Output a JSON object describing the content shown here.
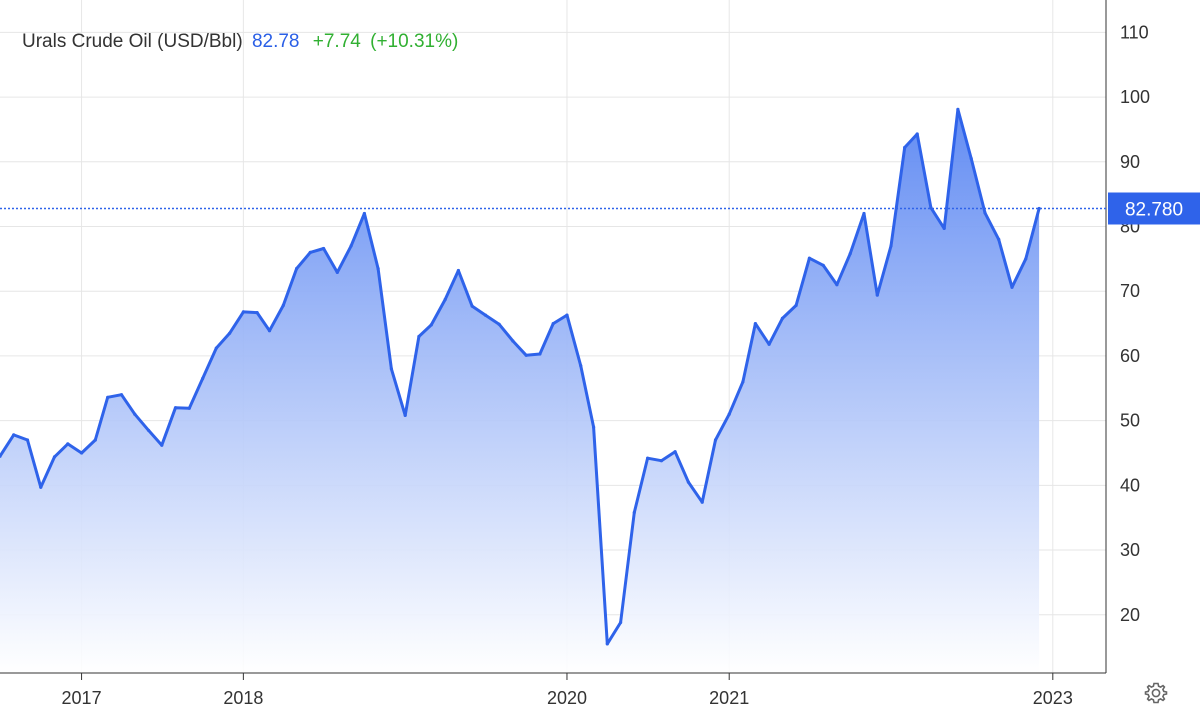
{
  "header": {
    "title": "Urals Crude Oil (USD/Bbl)",
    "price": "82.78",
    "change": "+7.74",
    "change_pct": "(+10.31%)"
  },
  "settings_icon": "gear-icon",
  "colors": {
    "line": "#2f63ea",
    "fill_top": "#5a86f2",
    "fill_bottom": "#ffffff",
    "price_text": "#2a5fe6",
    "change_text": "#31b032",
    "grid": "#e6e6e6",
    "price_tag_bg": "#2f63ea"
  },
  "chart_data": {
    "type": "area",
    "title": "",
    "xlabel": "",
    "ylabel": "",
    "ylim": [
      11,
      115
    ],
    "xlim": [
      "2016-07-01",
      "2023-05-01"
    ],
    "y_ticks": [
      20,
      30,
      40,
      50,
      60,
      70,
      80,
      90,
      100,
      110
    ],
    "y_ticks_labels": [
      "20",
      "30",
      "40",
      "50",
      "60",
      "70",
      "80",
      "90",
      "100",
      "110"
    ],
    "x_ticks": [
      {
        "label": "2017",
        "date": "2017-01-01"
      },
      {
        "label": "2018",
        "date": "2018-01-01"
      },
      {
        "label": "2020",
        "date": "2020-01-01"
      },
      {
        "label": "2021",
        "date": "2021-01-01"
      },
      {
        "label": "2023",
        "date": "2023-01-01"
      }
    ],
    "grid": true,
    "current_value": 82.78,
    "current_value_label": "82.780",
    "series": [
      {
        "name": "",
        "points": [
          [
            "2016-07-01",
            44.5
          ],
          [
            "2016-08-01",
            47.8
          ],
          [
            "2016-09-01",
            47.0
          ],
          [
            "2016-10-01",
            39.7
          ],
          [
            "2016-11-01",
            44.4
          ],
          [
            "2016-12-01",
            46.4
          ],
          [
            "2017-01-01",
            45.0
          ],
          [
            "2017-02-01",
            47.0
          ],
          [
            "2017-03-01",
            53.6
          ],
          [
            "2017-04-01",
            54.0
          ],
          [
            "2017-05-01",
            51.0
          ],
          [
            "2017-06-01",
            48.5
          ],
          [
            "2017-07-01",
            46.2
          ],
          [
            "2017-08-01",
            52.0
          ],
          [
            "2017-09-01",
            51.9
          ],
          [
            "2017-10-01",
            56.5
          ],
          [
            "2017-11-01",
            61.2
          ],
          [
            "2017-12-01",
            63.5
          ],
          [
            "2018-01-01",
            66.8
          ],
          [
            "2018-02-01",
            66.7
          ],
          [
            "2018-03-01",
            63.9
          ],
          [
            "2018-04-01",
            67.8
          ],
          [
            "2018-05-01",
            73.5
          ],
          [
            "2018-06-01",
            76.0
          ],
          [
            "2018-07-01",
            76.6
          ],
          [
            "2018-08-01",
            72.9
          ],
          [
            "2018-09-01",
            77.0
          ],
          [
            "2018-10-01",
            82.0
          ],
          [
            "2018-11-01",
            73.5
          ],
          [
            "2018-12-01",
            58.0
          ],
          [
            "2019-01-01",
            50.8
          ],
          [
            "2019-02-01",
            63.0
          ],
          [
            "2019-03-01",
            64.8
          ],
          [
            "2019-04-01",
            68.7
          ],
          [
            "2019-05-01",
            73.2
          ],
          [
            "2019-06-01",
            67.7
          ],
          [
            "2019-07-01",
            66.3
          ],
          [
            "2019-08-01",
            64.9
          ],
          [
            "2019-09-01",
            62.3
          ],
          [
            "2019-10-01",
            60.1
          ],
          [
            "2019-11-01",
            60.3
          ],
          [
            "2019-12-01",
            65.0
          ],
          [
            "2020-01-01",
            66.3
          ],
          [
            "2020-02-01",
            58.5
          ],
          [
            "2020-03-01",
            49.0
          ],
          [
            "2020-04-01",
            15.5
          ],
          [
            "2020-05-01",
            18.8
          ],
          [
            "2020-06-01",
            35.8
          ],
          [
            "2020-07-01",
            44.2
          ],
          [
            "2020-08-01",
            43.8
          ],
          [
            "2020-09-01",
            45.2
          ],
          [
            "2020-10-01",
            40.5
          ],
          [
            "2020-11-01",
            37.4
          ],
          [
            "2020-12-01",
            47.0
          ],
          [
            "2021-01-01",
            51.0
          ],
          [
            "2021-02-01",
            56.0
          ],
          [
            "2021-03-01",
            65.0
          ],
          [
            "2021-04-01",
            61.8
          ],
          [
            "2021-05-01",
            65.8
          ],
          [
            "2021-06-01",
            67.8
          ],
          [
            "2021-07-01",
            75.1
          ],
          [
            "2021-08-01",
            74.0
          ],
          [
            "2021-09-01",
            71.0
          ],
          [
            "2021-10-01",
            75.8
          ],
          [
            "2021-11-01",
            82.0
          ],
          [
            "2021-12-01",
            69.4
          ],
          [
            "2022-01-01",
            77.0
          ],
          [
            "2022-02-01",
            92.2
          ],
          [
            "2022-03-01",
            94.3
          ],
          [
            "2022-04-01",
            82.9
          ],
          [
            "2022-05-01",
            79.7
          ],
          [
            "2022-06-01",
            98.1
          ],
          [
            "2022-07-01",
            90.5
          ],
          [
            "2022-08-01",
            82.1
          ],
          [
            "2022-09-01",
            78.0
          ],
          [
            "2022-10-01",
            70.6
          ],
          [
            "2022-11-01",
            75.0
          ],
          [
            "2022-12-01",
            82.78
          ]
        ]
      }
    ]
  }
}
